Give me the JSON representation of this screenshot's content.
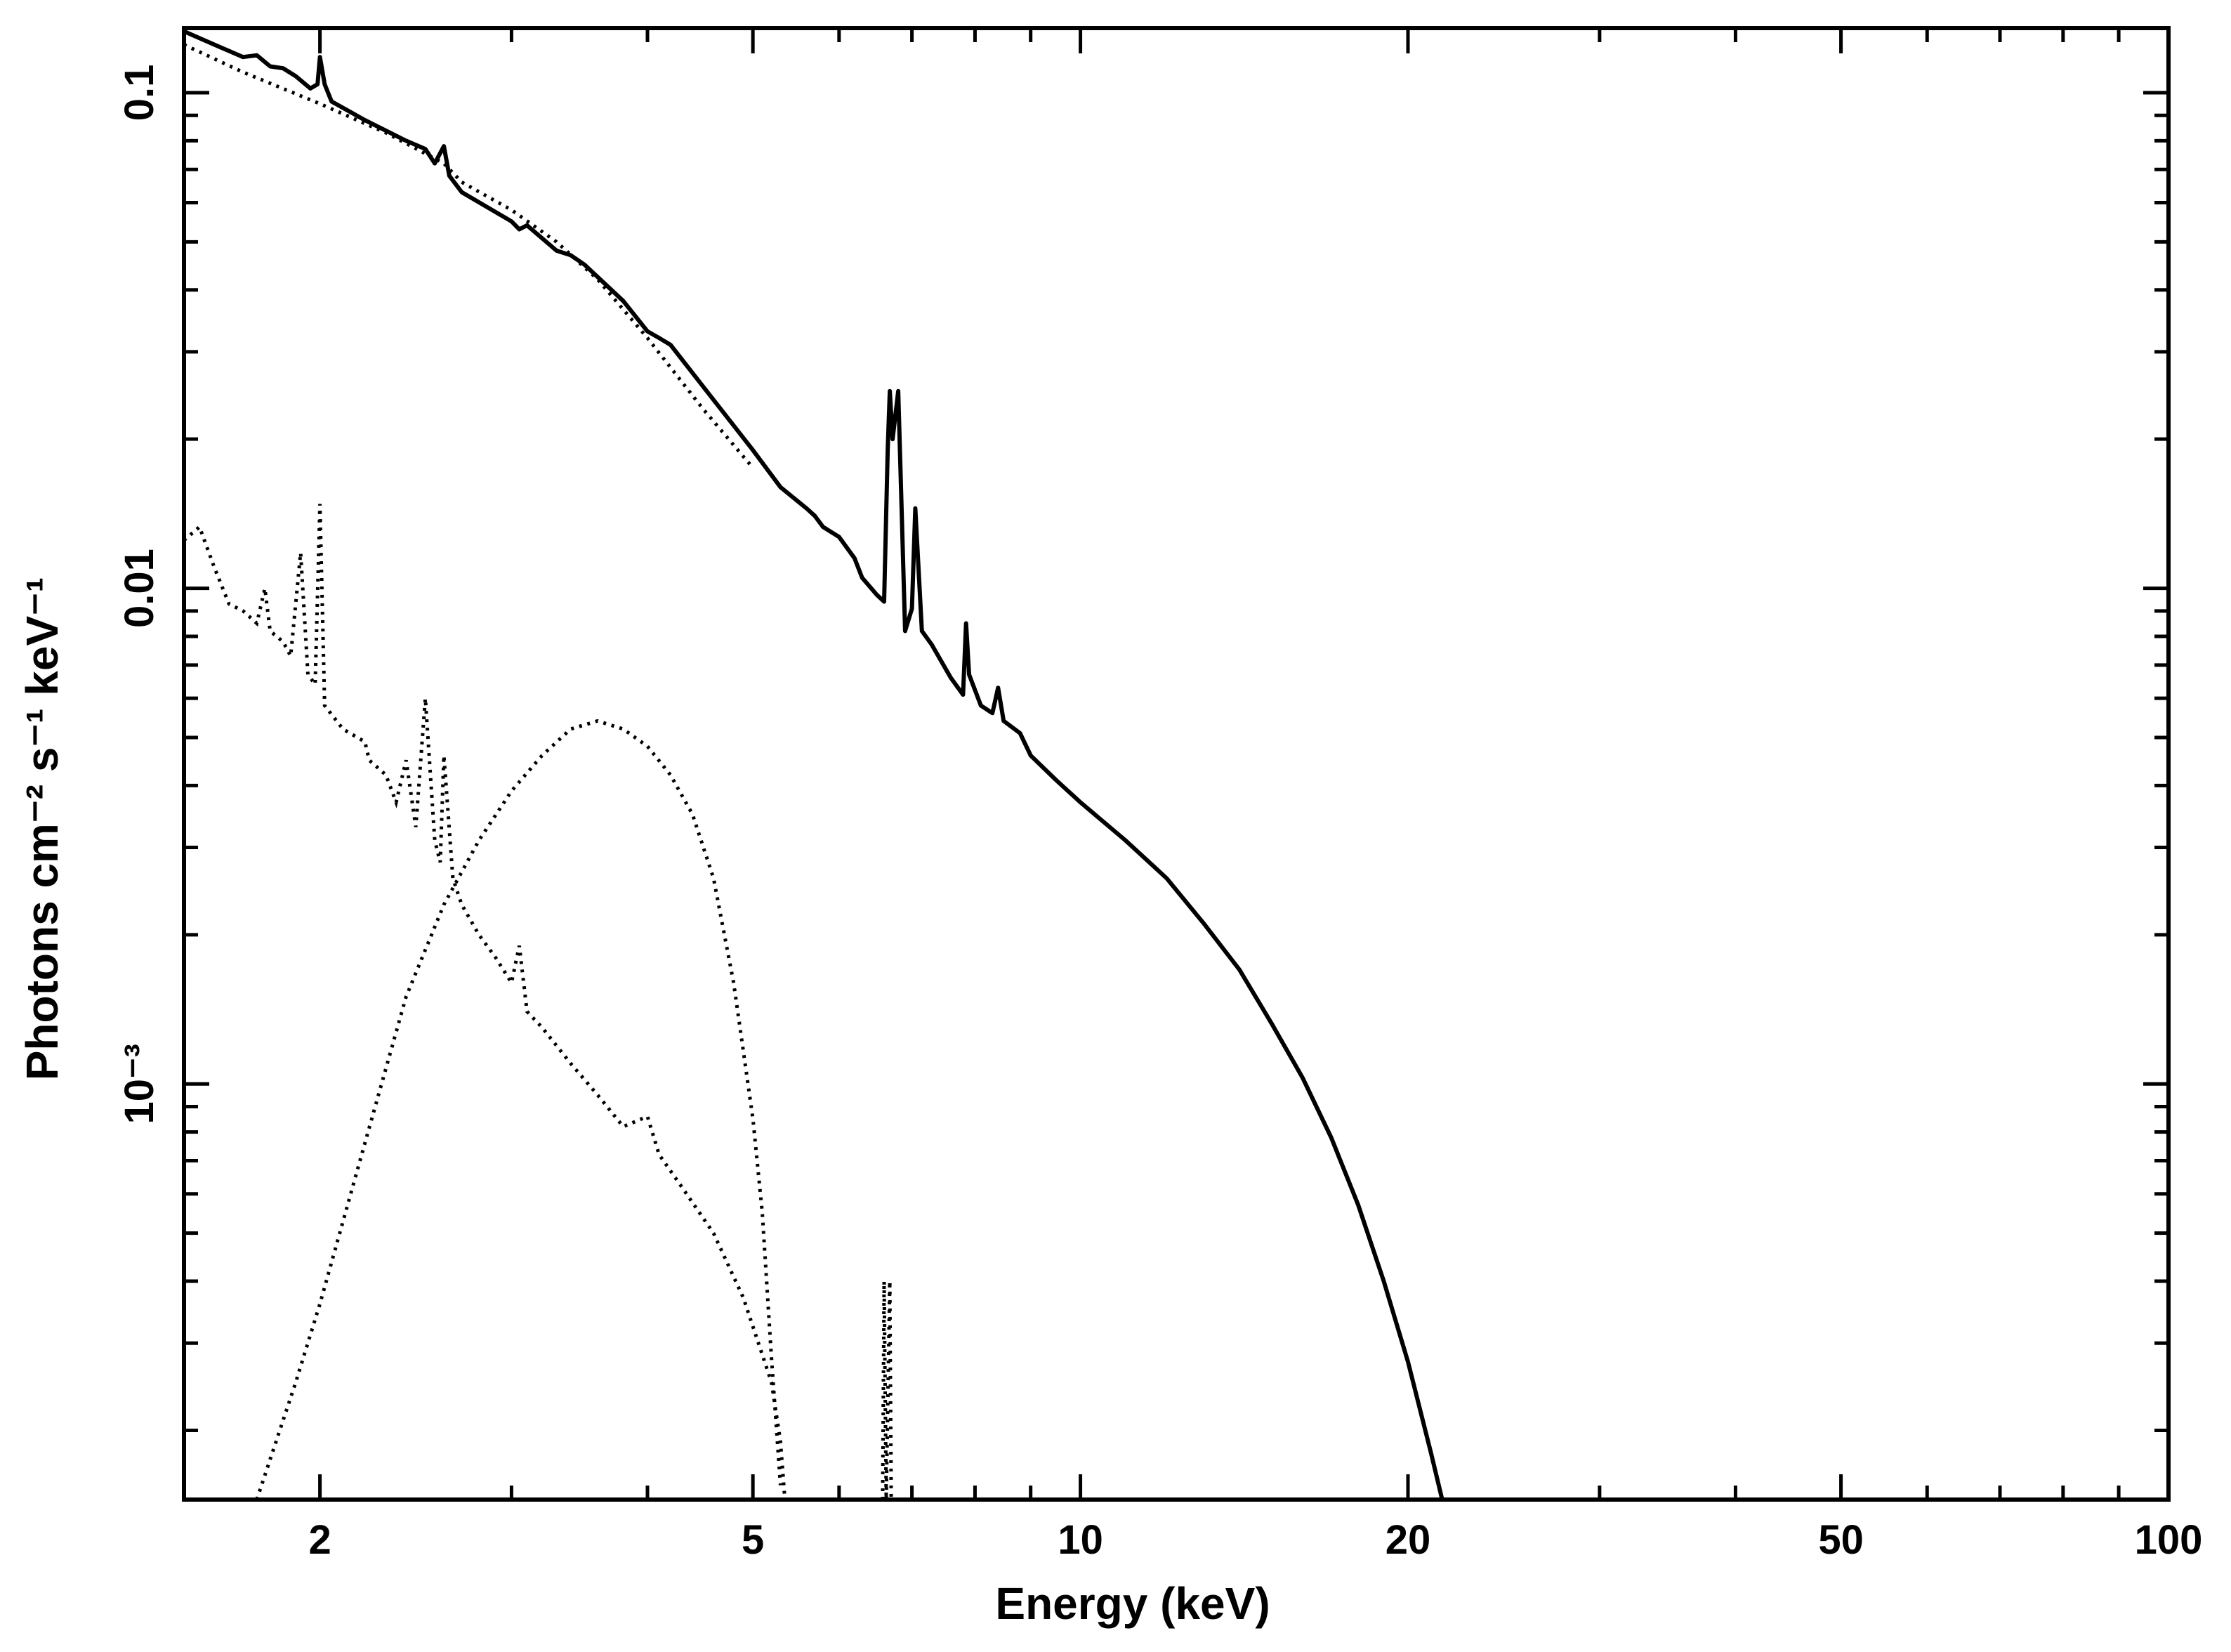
{
  "chart_data": {
    "type": "line",
    "title": "",
    "xlabel": "Energy (keV)",
    "ylabel": "Photons cm⁻² s⁻¹ keV⁻¹",
    "xscale": "log",
    "yscale": "log",
    "xlim": [
      1.5,
      100
    ],
    "ylim": [
      0.000145,
      0.135
    ],
    "grid": false,
    "legend": "none",
    "x_ticks": [
      {
        "value": 2,
        "label": "2"
      },
      {
        "value": 5,
        "label": "5"
      },
      {
        "value": 10,
        "label": "10"
      },
      {
        "value": 20,
        "label": "20"
      },
      {
        "value": 50,
        "label": "50"
      },
      {
        "value": 100,
        "label": "100"
      }
    ],
    "y_ticks": [
      {
        "value": 0.1,
        "label": "0.1"
      },
      {
        "value": 0.01,
        "label": "0.01"
      },
      {
        "value": 0.001,
        "label": "10⁻³"
      }
    ],
    "series": [
      {
        "style": "solid",
        "points": [
          [
            1.5,
            0.133
          ],
          [
            1.6,
            0.125
          ],
          [
            1.7,
            0.118
          ],
          [
            1.75,
            0.119
          ],
          [
            1.8,
            0.113
          ],
          [
            1.85,
            0.112
          ],
          [
            1.9,
            0.108
          ],
          [
            1.96,
            0.102
          ],
          [
            1.99,
            0.104
          ],
          [
            2.0,
            0.118
          ],
          [
            2.02,
            0.104
          ],
          [
            2.05,
            0.096
          ],
          [
            2.2,
            0.088
          ],
          [
            2.4,
            0.08
          ],
          [
            2.5,
            0.077
          ],
          [
            2.55,
            0.072
          ],
          [
            2.6,
            0.078
          ],
          [
            2.63,
            0.068
          ],
          [
            2.7,
            0.063
          ],
          [
            3.0,
            0.055
          ],
          [
            3.05,
            0.053
          ],
          [
            3.1,
            0.054
          ],
          [
            3.3,
            0.048
          ],
          [
            3.4,
            0.047
          ],
          [
            3.5,
            0.045
          ],
          [
            3.8,
            0.038
          ],
          [
            4.0,
            0.033
          ],
          [
            4.1,
            0.032
          ],
          [
            4.2,
            0.031
          ],
          [
            4.6,
            0.024
          ],
          [
            5.0,
            0.019
          ],
          [
            5.3,
            0.016
          ],
          [
            5.6,
            0.0145
          ],
          [
            5.7,
            0.014
          ],
          [
            5.8,
            0.0133
          ],
          [
            6.0,
            0.0127
          ],
          [
            6.2,
            0.0115
          ],
          [
            6.3,
            0.0105
          ],
          [
            6.5,
            0.0097
          ],
          [
            6.6,
            0.0094
          ],
          [
            6.65,
            0.019
          ],
          [
            6.68,
            0.025
          ],
          [
            6.72,
            0.02
          ],
          [
            6.8,
            0.025
          ],
          [
            6.9,
            0.0082
          ],
          [
            7.0,
            0.0091
          ],
          [
            7.05,
            0.0145
          ],
          [
            7.15,
            0.0082
          ],
          [
            7.3,
            0.0077
          ],
          [
            7.6,
            0.0066
          ],
          [
            7.8,
            0.0061
          ],
          [
            7.85,
            0.0085
          ],
          [
            7.9,
            0.0067
          ],
          [
            8.1,
            0.0058
          ],
          [
            8.3,
            0.0056
          ],
          [
            8.4,
            0.0063
          ],
          [
            8.5,
            0.0054
          ],
          [
            8.8,
            0.0051
          ],
          [
            9.0,
            0.0046
          ],
          [
            9.5,
            0.0041
          ],
          [
            10,
            0.0037
          ],
          [
            11,
            0.0031
          ],
          [
            12,
            0.0026
          ],
          [
            13,
            0.0021
          ],
          [
            14,
            0.0017
          ],
          [
            15,
            0.00132
          ],
          [
            16,
            0.00103
          ],
          [
            17,
            0.00078
          ],
          [
            18,
            0.00057
          ],
          [
            19,
            0.0004
          ],
          [
            20,
            0.000275
          ],
          [
            21,
            0.00018
          ],
          [
            21.5,
            0.000145
          ]
        ]
      },
      {
        "style": "dotted",
        "points": [
          [
            1.5,
            0.125
          ],
          [
            1.7,
            0.11
          ],
          [
            2.0,
            0.095
          ],
          [
            2.3,
            0.083
          ],
          [
            2.6,
            0.072
          ],
          [
            2.7,
            0.066
          ],
          [
            3.0,
            0.058
          ],
          [
            3.3,
            0.05
          ],
          [
            3.6,
            0.042
          ],
          [
            4.0,
            0.032
          ],
          [
            4.5,
            0.023
          ],
          [
            5.0,
            0.0175
          ]
        ]
      },
      {
        "style": "dotted",
        "points": [
          [
            1.5,
            0.0125
          ],
          [
            1.55,
            0.0133
          ],
          [
            1.6,
            0.011
          ],
          [
            1.65,
            0.0093
          ],
          [
            1.7,
            0.009
          ],
          [
            1.75,
            0.0085
          ],
          [
            1.78,
            0.01
          ],
          [
            1.8,
            0.0082
          ],
          [
            1.85,
            0.0078
          ],
          [
            1.88,
            0.0073
          ],
          [
            1.92,
            0.0118
          ],
          [
            1.95,
            0.0067
          ],
          [
            1.98,
            0.0064
          ],
          [
            2.0,
            0.0148
          ],
          [
            2.02,
            0.0058
          ],
          [
            2.1,
            0.0052
          ],
          [
            2.2,
            0.0049
          ],
          [
            2.22,
            0.0045
          ],
          [
            2.3,
            0.0042
          ],
          [
            2.35,
            0.0037
          ],
          [
            2.4,
            0.0045
          ],
          [
            2.45,
            0.0033
          ],
          [
            2.5,
            0.006
          ],
          [
            2.55,
            0.0031
          ],
          [
            2.58,
            0.0028
          ],
          [
            2.6,
            0.0046
          ],
          [
            2.65,
            0.0026
          ],
          [
            2.7,
            0.0023
          ],
          [
            2.8,
            0.002
          ],
          [
            2.9,
            0.0018
          ],
          [
            3.0,
            0.0016
          ],
          [
            3.05,
            0.0019
          ],
          [
            3.1,
            0.0014
          ],
          [
            3.2,
            0.0013
          ],
          [
            3.4,
            0.0011
          ],
          [
            3.6,
            0.00095
          ],
          [
            3.8,
            0.00082
          ],
          [
            4.0,
            0.00086
          ],
          [
            4.1,
            0.00072
          ],
          [
            4.3,
            0.00062
          ],
          [
            4.6,
            0.0005
          ],
          [
            4.9,
            0.00037
          ],
          [
            5.2,
            0.00025
          ],
          [
            5.3,
            0.00019
          ],
          [
            5.35,
            0.000145
          ]
        ]
      },
      {
        "style": "dotted",
        "points": [
          [
            1.75,
            0.000145
          ],
          [
            1.9,
            0.00025
          ],
          [
            2.0,
            0.00036
          ],
          [
            2.2,
            0.00076
          ],
          [
            2.4,
            0.0015
          ],
          [
            2.6,
            0.0023
          ],
          [
            2.8,
            0.0031
          ],
          [
            3.0,
            0.0039
          ],
          [
            3.2,
            0.0046
          ],
          [
            3.4,
            0.0052
          ],
          [
            3.6,
            0.0054
          ],
          [
            3.8,
            0.0052
          ],
          [
            4.0,
            0.0048
          ],
          [
            4.2,
            0.0042
          ],
          [
            4.4,
            0.0035
          ],
          [
            4.6,
            0.0026
          ],
          [
            4.8,
            0.0016
          ],
          [
            5.0,
            0.00085
          ],
          [
            5.1,
            0.00055
          ],
          [
            5.2,
            0.00028
          ],
          [
            5.3,
            0.000155
          ]
        ]
      },
      {
        "style": "dotted",
        "points": [
          [
            6.58,
            0.000145
          ],
          [
            6.6,
            0.0004
          ],
          [
            6.63,
            0.000145
          ],
          [
            6.68,
            0.0004
          ],
          [
            6.7,
            0.000145
          ]
        ]
      }
    ]
  }
}
